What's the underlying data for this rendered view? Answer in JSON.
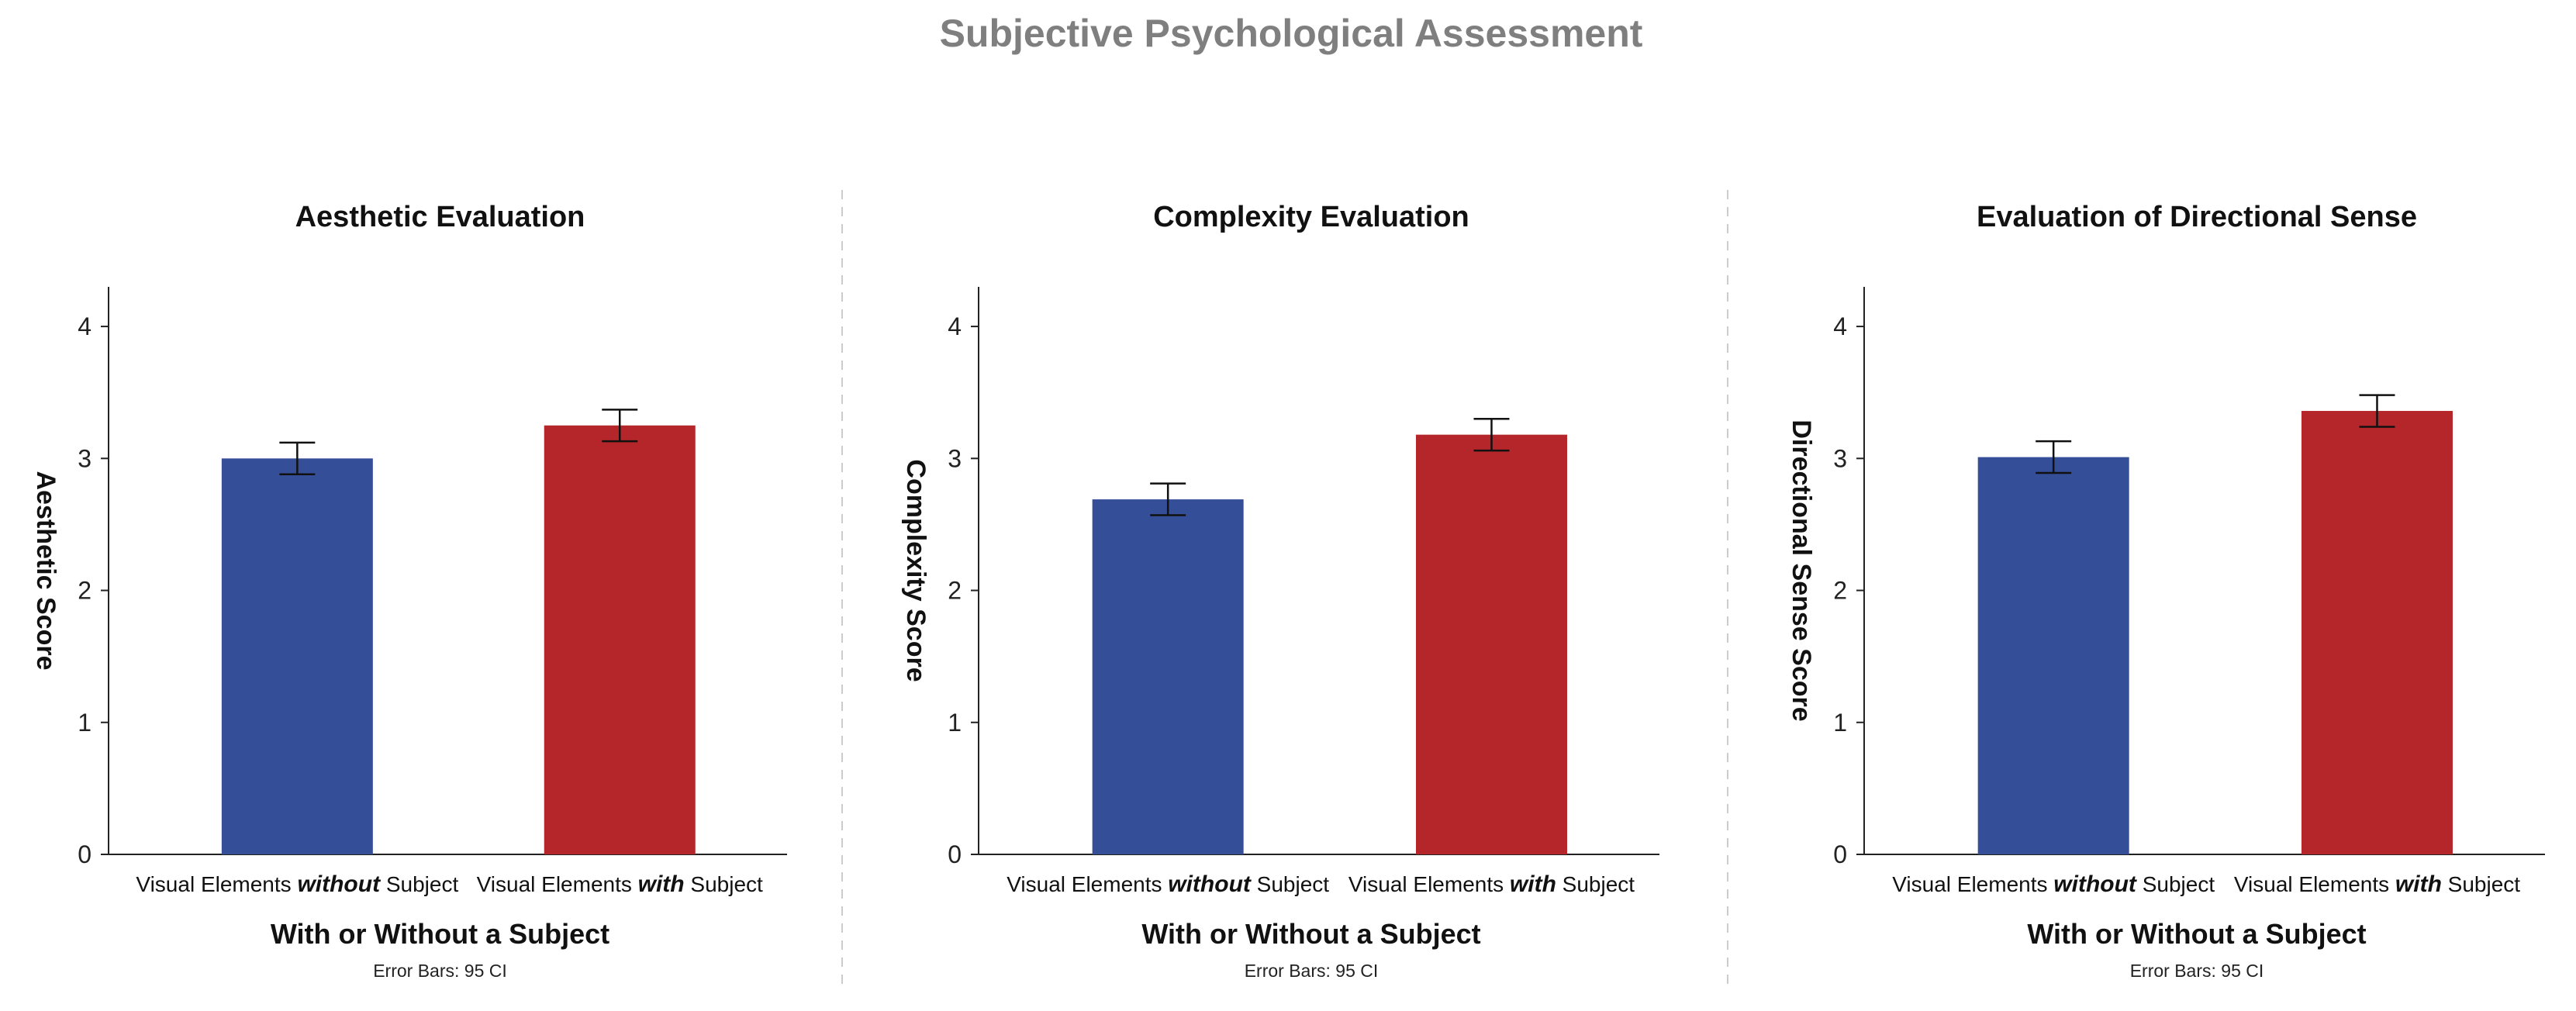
{
  "title": "Subjective Psychological Assessment",
  "colors": {
    "without": "#354e98",
    "with": "#b5262a"
  },
  "chart_data": [
    {
      "type": "bar",
      "title": "Aesthetic Evaluation",
      "xlabel": "With or Without a Subject",
      "ylabel": "Aesthetic Score",
      "note": "Error Bars: 95 CI",
      "categories": [
        {
          "pre": "Visual Elements ",
          "emph": "without",
          "post": " Subject"
        },
        {
          "pre": "Visual Elements ",
          "emph": "with",
          "post": " Subject"
        }
      ],
      "values": [
        3.0,
        3.25
      ],
      "errors": [
        0.12,
        0.12
      ],
      "ylim": [
        0,
        4.3
      ],
      "yticks": [
        0,
        1,
        2,
        3,
        4
      ],
      "grid": false
    },
    {
      "type": "bar",
      "title": "Complexity Evaluation",
      "xlabel": "With or Without a Subject",
      "ylabel": "Complexity Score",
      "note": "Error Bars: 95 CI",
      "categories": [
        {
          "pre": "Visual Elements ",
          "emph": "without",
          "post": " Subject"
        },
        {
          "pre": "Visual Elements ",
          "emph": "with",
          "post": " Subject"
        }
      ],
      "values": [
        2.69,
        3.18
      ],
      "errors": [
        0.12,
        0.12
      ],
      "ylim": [
        0,
        4.3
      ],
      "yticks": [
        0,
        1,
        2,
        3,
        4
      ],
      "grid": false
    },
    {
      "type": "bar",
      "title": "Evaluation of Directional Sense",
      "xlabel": "With or Without a Subject",
      "ylabel": "Directional Sense Score",
      "note": "Error Bars: 95 CI",
      "categories": [
        {
          "pre": "Visual Elements ",
          "emph": "without",
          "post": " Subject"
        },
        {
          "pre": "Visual Elements ",
          "emph": "with",
          "post": " Subject"
        }
      ],
      "values": [
        3.01,
        3.36
      ],
      "errors": [
        0.12,
        0.12
      ],
      "ylim": [
        0,
        4.3
      ],
      "yticks": [
        0,
        1,
        2,
        3,
        4
      ],
      "grid": false
    }
  ]
}
